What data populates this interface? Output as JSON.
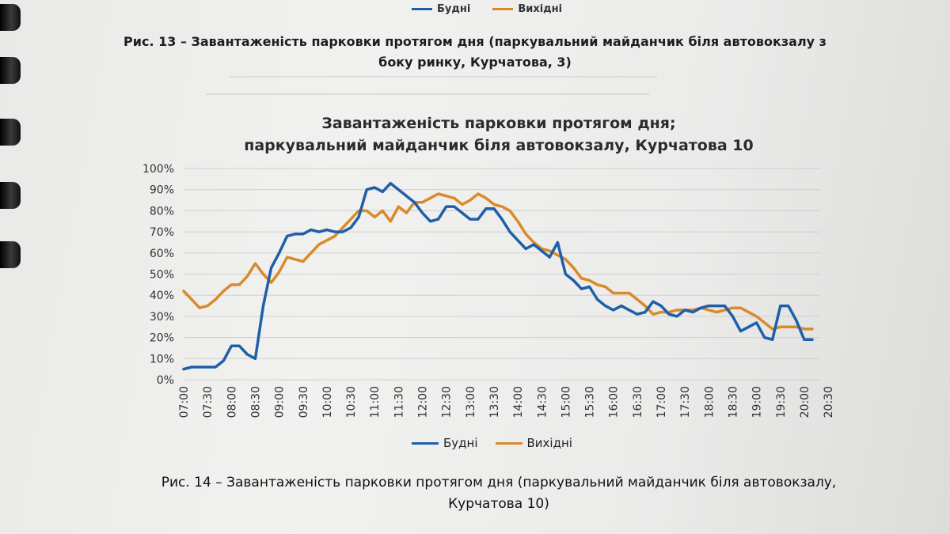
{
  "top_legend": {
    "weekday": "Будні",
    "weekend": "Вихідні"
  },
  "caption_13": {
    "line1": "Рис. 13 – Завантаженість парковки протягом дня (паркувальний майданчик біля автовокзалу з",
    "line2": "боку ринку, Курчатова, 3)"
  },
  "caption_14": {
    "line1": "Рис. 14 – Завантаженість парковки протягом дня (паркувальний майданчик біля автовокзалу,",
    "line2": "Курчатова 10)"
  },
  "colors": {
    "weekday": "#1f5fa8",
    "weekend": "#d98a2b",
    "grid": "#cfcfcf",
    "axis": "#444"
  },
  "chart_data": {
    "type": "line",
    "title": "Завантаженість парковки протягом дня;",
    "subtitle": "паркувальний майданчик біля автовокзалу, Курчатова 10",
    "xlabel": "",
    "ylabel": "",
    "ylim": [
      0,
      100
    ],
    "y_ticks": [
      "0%",
      "10%",
      "20%",
      "30%",
      "40%",
      "50%",
      "60%",
      "70%",
      "80%",
      "90%",
      "100%"
    ],
    "x_tick_labels": [
      "07:00",
      "07:30",
      "08:00",
      "08:30",
      "09:00",
      "09:30",
      "10:00",
      "10:30",
      "11:00",
      "11:30",
      "12:00",
      "12:30",
      "13:00",
      "13:30",
      "14:00",
      "14:30",
      "15:00",
      "15:30",
      "16:00",
      "16:30",
      "17:00",
      "17:30",
      "18:00",
      "18:30",
      "19:00",
      "19:30",
      "20:00",
      "20:30"
    ],
    "x_start": "07:00",
    "x_step": "10 min",
    "legend_position": "bottom",
    "grid": true,
    "series": [
      {
        "name": "Будні",
        "values": [
          5,
          6,
          6,
          6,
          6,
          9,
          16,
          16,
          12,
          10,
          35,
          53,
          60,
          68,
          69,
          69,
          71,
          70,
          71,
          70,
          70,
          72,
          77,
          90,
          91,
          89,
          93,
          90,
          87,
          84,
          79,
          75,
          76,
          82,
          82,
          79,
          76,
          76,
          81,
          81,
          76,
          70,
          66,
          62,
          64,
          61,
          58,
          65,
          50,
          47,
          43,
          44,
          38,
          35,
          33,
          35,
          33,
          31,
          32,
          37,
          35,
          31,
          30,
          33,
          32,
          34,
          35,
          35,
          35,
          30,
          23,
          25,
          27,
          20,
          19,
          35,
          35,
          28,
          19,
          19
        ]
      },
      {
        "name": "Вихідні",
        "values": [
          42,
          38,
          34,
          35,
          38,
          42,
          45,
          45,
          49,
          55,
          50,
          46,
          51,
          58,
          57,
          56,
          60,
          64,
          66,
          68,
          72,
          76,
          80,
          80,
          77,
          80,
          75,
          82,
          79,
          84,
          84,
          86,
          88,
          87,
          86,
          83,
          85,
          88,
          86,
          83,
          82,
          80,
          75,
          69,
          65,
          62,
          61,
          59,
          57,
          53,
          48,
          47,
          45,
          44,
          41,
          41,
          41,
          38,
          35,
          31,
          32,
          32,
          33,
          33,
          33,
          34,
          33,
          32,
          33,
          34,
          34,
          32,
          30,
          27,
          24,
          25,
          25,
          25,
          24,
          24
        ]
      }
    ]
  }
}
